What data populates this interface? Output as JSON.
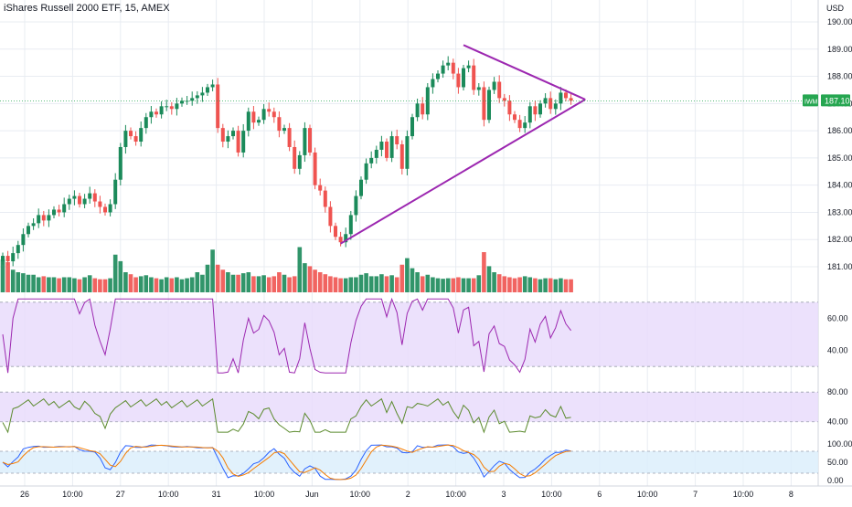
{
  "header": {
    "title": "iShares Russell 2000 ETF, 15, AMEX",
    "currency": "USD"
  },
  "colors": {
    "up": "#26a69a",
    "up_fill": "#1b8a5a",
    "down": "#ef5350",
    "triangle": "#9c27b0",
    "rsi_line": "#9c27b0",
    "rsi_band": "#e9dcfb",
    "osc_line": "#5b8a2d",
    "osc_band": "#e9dcfb",
    "stoch_k": "#2962ff",
    "stoch_d": "#f57c00",
    "stoch_band": "#dceffc",
    "price_label_bg": "#26a651",
    "grid": "#e8ecf2"
  },
  "chart_data": {
    "type": "candlestick",
    "price_ylim": [
      180.25,
      190.4
    ],
    "price_ticks": [
      "190.00",
      "189.00",
      "188.00",
      "187.00",
      "186.00",
      "185.00",
      "184.00",
      "183.00",
      "182.00",
      "181.00"
    ],
    "last_price": {
      "symbol": "IWM",
      "value": "187.10"
    },
    "x_ticks": [
      "26",
      "10:00",
      "27",
      "10:00",
      "31",
      "10:00",
      "Jun",
      "10:00",
      "2",
      "10:00",
      "3",
      "10:00",
      "6",
      "10:00",
      "7",
      "10:00",
      "8"
    ],
    "close": [
      181.4,
      181.2,
      181.5,
      181.8,
      182.2,
      182.5,
      182.6,
      182.9,
      182.7,
      182.9,
      183.1,
      183.0,
      183.3,
      183.5,
      183.6,
      183.3,
      183.5,
      183.7,
      183.4,
      183.2,
      183.0,
      183.3,
      184.2,
      185.4,
      186.0,
      185.8,
      185.6,
      186.1,
      186.5,
      186.7,
      186.6,
      186.9,
      186.9,
      186.8,
      187.0,
      187.1,
      187.1,
      187.2,
      187.3,
      187.4,
      187.6,
      187.7,
      186.1,
      185.6,
      185.8,
      186.0,
      185.2,
      186.0,
      186.7,
      186.3,
      186.4,
      186.8,
      186.7,
      186.5,
      186.0,
      186.1,
      185.4,
      184.6,
      185.1,
      186.1,
      185.2,
      184.0,
      183.8,
      183.2,
      182.5,
      182.1,
      181.9,
      182.2,
      182.9,
      183.6,
      184.2,
      184.8,
      185.0,
      185.3,
      185.6,
      185.0,
      185.8,
      185.5,
      184.6,
      185.8,
      186.5,
      187.0,
      186.6,
      187.6,
      187.9,
      188.1,
      188.4,
      188.5,
      188.1,
      187.6,
      188.3,
      188.4,
      187.5,
      187.6,
      186.4,
      187.5,
      187.8,
      187.2,
      187.1,
      186.6,
      186.4,
      186.1,
      186.3,
      186.9,
      186.6,
      187.0,
      187.2,
      186.8,
      187.0,
      187.4,
      187.2,
      187.1
    ],
    "volume": [
      65,
      60,
      45,
      40,
      38,
      35,
      35,
      30,
      32,
      30,
      30,
      28,
      30,
      30,
      28,
      26,
      30,
      34,
      28,
      26,
      26,
      28,
      75,
      62,
      40,
      36,
      30,
      32,
      34,
      30,
      28,
      26,
      30,
      28,
      30,
      26,
      28,
      30,
      40,
      35,
      55,
      85,
      55,
      45,
      40,
      35,
      35,
      38,
      40,
      32,
      32,
      34,
      30,
      32,
      40,
      35,
      30,
      32,
      90,
      58,
      52,
      45,
      40,
      36,
      32,
      30,
      28,
      28,
      30,
      30,
      35,
      38,
      32,
      32,
      36,
      32,
      34,
      30,
      55,
      68,
      48,
      40,
      32,
      35,
      30,
      28,
      27,
      28,
      28,
      30,
      28,
      28,
      28,
      34,
      80,
      52,
      40,
      36,
      32,
      30,
      28,
      30,
      32,
      30,
      28,
      26,
      28,
      28,
      26,
      28,
      26,
      26
    ],
    "triangle": {
      "upper": [
        {
          "bar": 90,
          "price": 189.15
        },
        {
          "bar": 112,
          "price": 187.15
        }
      ],
      "lower": [
        {
          "bar": 66,
          "price": 181.85
        },
        {
          "bar": 112,
          "price": 187.15
        }
      ]
    },
    "rsi": {
      "ticks": [
        "60.00",
        "40.00"
      ],
      "ylim": [
        25,
        75
      ],
      "band": [
        30,
        70
      ]
    },
    "osc": {
      "ticks": [
        "80.00",
        "40.00"
      ],
      "ylim": [
        20,
        95
      ],
      "band": [
        40,
        80
      ]
    },
    "stoch": {
      "ticks": [
        "100.00",
        "50.00",
        "0.00"
      ],
      "ylim": [
        -5,
        110
      ],
      "band": [
        20,
        80
      ]
    }
  }
}
